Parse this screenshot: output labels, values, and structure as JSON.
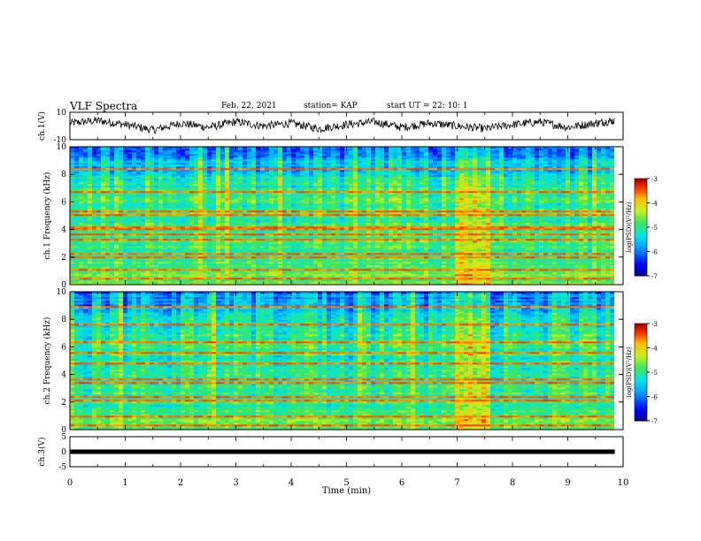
{
  "header": {
    "title": "VLF Spectra",
    "date": "Feb. 22, 2021",
    "station": "station= KAP",
    "start": "start  UT =   22: 10: 1"
  },
  "chart_data": [
    {
      "type": "line",
      "panel": "ch1-waveform",
      "ylabel": "ch.1(V)",
      "ylim": [
        -10,
        10
      ],
      "yticks": [
        "10",
        "-10"
      ],
      "xlim": [
        0,
        10
      ],
      "x": [
        0,
        0.5,
        1,
        1.5,
        2,
        2.5,
        3,
        3.5,
        4,
        4.5,
        5,
        5.5,
        6,
        6.5,
        7,
        7.5,
        8,
        8.5,
        9,
        9.5,
        9.85
      ],
      "y": [
        2,
        4,
        1,
        -3,
        2,
        -1,
        3,
        0,
        2,
        -2,
        1,
        3,
        -1,
        2,
        0,
        -2,
        1,
        3,
        -1,
        2,
        4
      ]
    },
    {
      "type": "heatmap",
      "panel": "ch1-spectrogram",
      "ylabel": "ch.1 Frequency (kHz)",
      "ylim": [
        0,
        10
      ],
      "yticks": [
        "0",
        "2",
        "4",
        "6",
        "8",
        "10"
      ],
      "xlim": [
        0,
        10
      ],
      "colorbar": {
        "label": "log(PSD)(V²/Hz)",
        "range": [
          -7,
          -3
        ],
        "ticks": [
          "-3",
          "-4",
          "-5",
          "-6",
          "-7"
        ]
      },
      "bright_interval_min": [
        7.0,
        7.6
      ]
    },
    {
      "type": "heatmap",
      "panel": "ch2-spectrogram",
      "ylabel": "ch.2 Frequency (kHz)",
      "ylim": [
        0,
        10
      ],
      "yticks": [
        "0",
        "2",
        "4",
        "6",
        "8",
        "10"
      ],
      "xlim": [
        0,
        10
      ],
      "colorbar": {
        "label": "log(PSD)(V²/Hz)",
        "range": [
          -7,
          -3
        ],
        "ticks": [
          "-3",
          "-4",
          "-5",
          "-6",
          "-7"
        ]
      },
      "bright_interval_min": [
        7.0,
        7.6
      ]
    },
    {
      "type": "line",
      "panel": "ch3-waveform",
      "ylabel": "ch.3(V)",
      "ylim": [
        -5,
        5
      ],
      "yticks": [
        "5",
        "0",
        "-5"
      ],
      "xlim": [
        0,
        10
      ],
      "level": 0
    }
  ],
  "xaxis": {
    "label": "Time  (min)",
    "ticks": [
      "0",
      "1",
      "2",
      "3",
      "4",
      "5",
      "6",
      "7",
      "8",
      "9",
      "10"
    ]
  }
}
